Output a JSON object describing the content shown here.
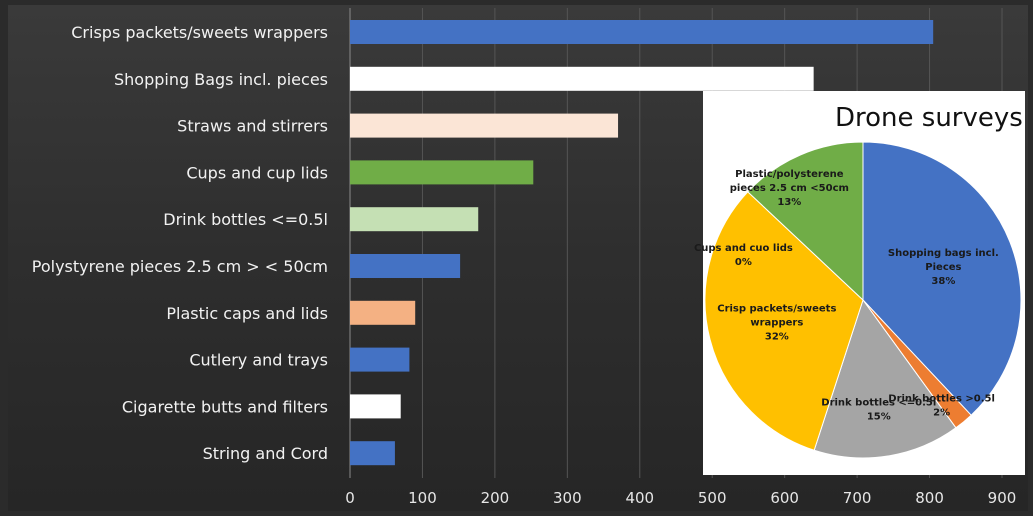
{
  "chart_data": [
    {
      "type": "bar",
      "orientation": "horizontal",
      "categories": [
        "Crisps packets/sweets wrappers",
        "Shopping Bags incl. pieces",
        "Straws and stirrers",
        "Cups and cup lids",
        "Drink bottles <=0.5l",
        "Polystyrene pieces 2.5 cm > < 50cm",
        "Plastic caps and lids",
        "Cutlery and trays",
        "Cigarette butts and filters",
        "String and Cord"
      ],
      "values": [
        805,
        640,
        370,
        253,
        177,
        152,
        90,
        82,
        70,
        62
      ],
      "colors": [
        "#4472c4",
        "#ffffff",
        "#fbe5d6",
        "#70ad47",
        "#c5e0b4",
        "#4472c4",
        "#f4b183",
        "#4472c4",
        "#ffffff",
        "#4472c4"
      ],
      "xticks": [
        "0",
        "100",
        "200",
        "300",
        "400",
        "500",
        "600",
        "700",
        "800",
        "900"
      ],
      "xlim": [
        0,
        900
      ],
      "grid": true,
      "legend": "none"
    },
    {
      "type": "pie",
      "title": "Drone surveys",
      "slices": [
        {
          "label": "Shopping bags incl. Pieces",
          "pct_label": "38%",
          "value": 38,
          "color": "#4472c4"
        },
        {
          "label": "Drink bottles >0.5l",
          "pct_label": "2%",
          "value": 2,
          "color": "#ed7d31"
        },
        {
          "label": "Drink bottles <=0.5l",
          "pct_label": "15%",
          "value": 15,
          "color": "#a5a5a5"
        },
        {
          "label": "Crisp packets/sweets wrappers",
          "pct_label": "32%",
          "value": 32,
          "color": "#ffc000"
        },
        {
          "label": "Cups and cuo lids",
          "pct_label": "0%",
          "value": 0,
          "color": "#5b9bd5"
        },
        {
          "label": "Plastic/polysterene pieces 2.5 cm <50cm",
          "pct_label": "13%",
          "value": 13,
          "color": "#70ad47"
        }
      ]
    }
  ]
}
